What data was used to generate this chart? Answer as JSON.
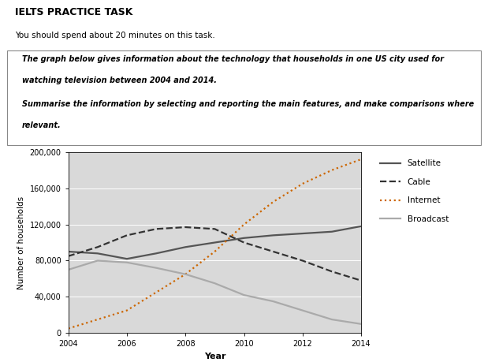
{
  "years": [
    2004,
    2005,
    2006,
    2007,
    2008,
    2009,
    2010,
    2011,
    2012,
    2013,
    2014
  ],
  "satellite": [
    90000,
    88000,
    82000,
    88000,
    95000,
    100000,
    105000,
    108000,
    110000,
    112000,
    118000
  ],
  "cable": [
    85000,
    95000,
    108000,
    115000,
    117000,
    115000,
    100000,
    90000,
    80000,
    68000,
    58000
  ],
  "internet": [
    5000,
    15000,
    25000,
    45000,
    65000,
    90000,
    120000,
    145000,
    165000,
    180000,
    192000
  ],
  "broadcast": [
    70000,
    80000,
    78000,
    72000,
    65000,
    55000,
    42000,
    35000,
    25000,
    15000,
    10000
  ],
  "ylim": [
    0,
    200000
  ],
  "yticks": [
    0,
    40000,
    80000,
    120000,
    160000,
    200000
  ],
  "ytick_labels": [
    "0",
    "40,000",
    "80,000",
    "120,000",
    "160,000",
    "200,000"
  ],
  "xticks": [
    2004,
    2006,
    2008,
    2010,
    2012,
    2014
  ],
  "xlabel": "Year",
  "ylabel": "Number of households",
  "satellite_color": "#555555",
  "cable_color": "#333333",
  "internet_color": "#cc6600",
  "broadcast_color": "#aaaaaa",
  "bg_color": "#d9d9d9",
  "title_main": "IELTS PRACTICE TASK",
  "title_sub": "You should spend about 20 minutes on this task.",
  "prompt_line1": "The graph below gives information about the technology that households in one US city used for",
  "prompt_line2": "watching television between 2004 and 2014.",
  "prompt_line3": "Summarise the information by selecting and reporting the main features, and make comparisons where",
  "prompt_line4": "relevant."
}
